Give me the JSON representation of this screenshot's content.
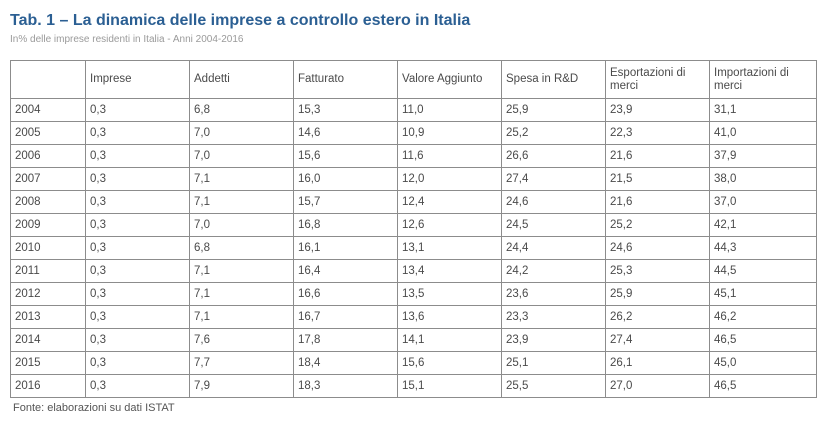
{
  "title": "Tab. 1 – La dinamica delle imprese a controllo estero in Italia",
  "subtitle": "In% delle imprese residenti in Italia - Anni 2004-2016",
  "table": {
    "headers": [
      "",
      "Imprese",
      "Addetti",
      "Fatturato",
      "Valore Aggiunto",
      "Spesa in R&D",
      "Esportazioni di merci",
      "Importazioni di merci"
    ],
    "rows": [
      [
        "2004",
        "0,3",
        "6,8",
        "15,3",
        "11,0",
        "25,9",
        "23,9",
        "31,1"
      ],
      [
        "2005",
        "0,3",
        "7,0",
        "14,6",
        "10,9",
        "25,2",
        "22,3",
        "41,0"
      ],
      [
        "2006",
        "0,3",
        "7,0",
        "15,6",
        "11,6",
        "26,6",
        "21,6",
        "37,9"
      ],
      [
        "2007",
        "0,3",
        "7,1",
        "16,0",
        "12,0",
        "27,4",
        "21,5",
        "38,0"
      ],
      [
        "2008",
        "0,3",
        "7,1",
        "15,7",
        "12,4",
        "24,6",
        "21,6",
        "37,0"
      ],
      [
        "2009",
        "0,3",
        "7,0",
        "16,8",
        "12,6",
        "24,5",
        "25,2",
        "42,1"
      ],
      [
        "2010",
        "0,3",
        "6,8",
        "16,1",
        "13,1",
        "24,4",
        "24,6",
        "44,3"
      ],
      [
        "2011",
        "0,3",
        "7,1",
        "16,4",
        "13,4",
        "24,2",
        "25,3",
        "44,5"
      ],
      [
        "2012",
        "0,3",
        "7,1",
        "16,6",
        "13,5",
        "23,6",
        "25,9",
        "45,1"
      ],
      [
        "2013",
        "0,3",
        "7,1",
        "16,7",
        "13,6",
        "23,3",
        "26,2",
        "46,2"
      ],
      [
        "2014",
        "0,3",
        "7,6",
        "17,8",
        "14,1",
        "23,9",
        "27,4",
        "46,5"
      ],
      [
        "2015",
        "0,3",
        "7,7",
        "18,4",
        "15,6",
        "25,1",
        "26,1",
        "45,0"
      ],
      [
        "2016",
        "0,3",
        "7,9",
        "18,3",
        "15,1",
        "25,5",
        "27,0",
        "46,5"
      ]
    ]
  },
  "source": "Fonte: elaborazioni su dati ISTAT",
  "colors": {
    "title": "#2b5f93",
    "border": "#8c8c8c",
    "subtitle": "#9a9a9a"
  }
}
